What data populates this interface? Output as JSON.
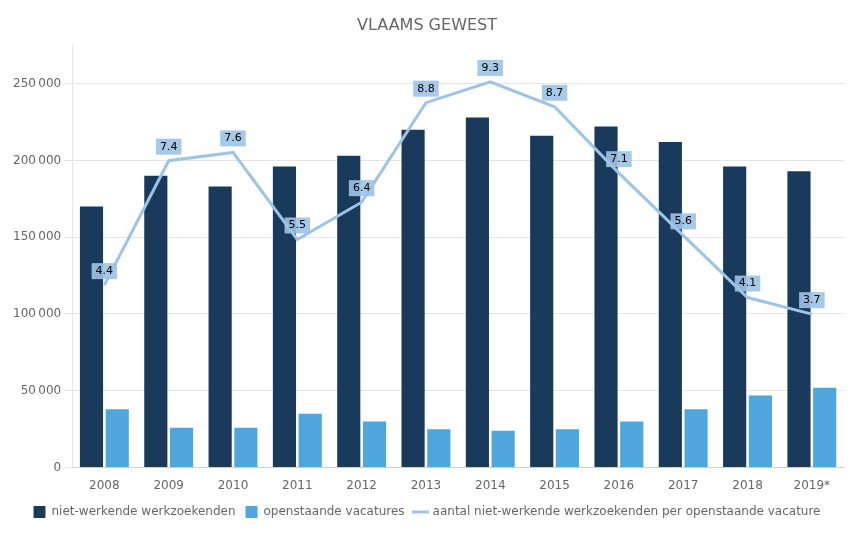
{
  "chart_data": {
    "type": "bar",
    "title": "VLAAMS GEWEST",
    "categories": [
      "2008",
      "2009",
      "2010",
      "2011",
      "2012",
      "2013",
      "2014",
      "2015",
      "2016",
      "2017",
      "2018",
      "2019*"
    ],
    "series": [
      {
        "name": "niet-werkende werkzoekenden",
        "color": "#1a3a5c",
        "values": [
          170000,
          190000,
          183000,
          196000,
          203000,
          220000,
          228000,
          216000,
          222000,
          212000,
          196000,
          193000
        ]
      },
      {
        "name": "openstaande vacatures",
        "color": "#4ea6dc",
        "values": [
          38000,
          26000,
          26000,
          35000,
          30000,
          25000,
          24000,
          25000,
          30000,
          38000,
          47000,
          52000
        ]
      },
      {
        "name": "aantal niet-werkende werkzoekenden per openstaande vacature",
        "color": "#9dc3e6",
        "type": "line",
        "axis": "y2",
        "data_labels": true,
        "values": [
          4.4,
          7.4,
          7.6,
          5.5,
          6.4,
          8.8,
          9.3,
          8.7,
          7.1,
          5.6,
          4.1,
          3.7
        ]
      }
    ],
    "ylim": [
      0,
      275000
    ],
    "yticks": [
      0,
      {
        "value": 50000,
        "label": "50 000"
      },
      {
        "value": 100000,
        "label": "100 000"
      },
      {
        "value": 150000,
        "label": "150 000"
      },
      {
        "value": 200000,
        "label": "200 000"
      },
      {
        "value": 250000,
        "label": "250 000"
      }
    ],
    "y2lim": [
      0,
      10.185185185185185
    ],
    "grid": true,
    "legend": "bottom"
  }
}
